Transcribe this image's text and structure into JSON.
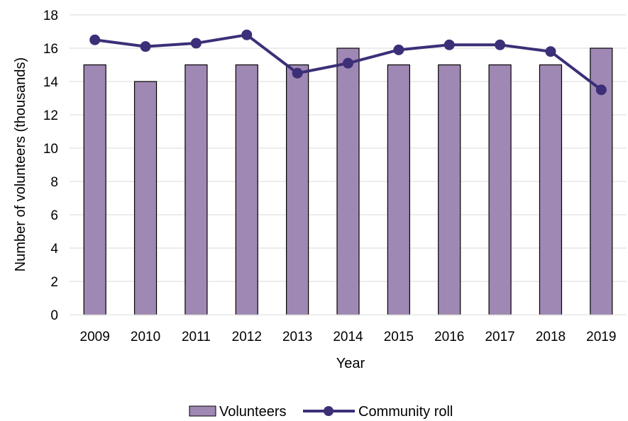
{
  "chart_data": {
    "type": "bar",
    "categories": [
      "2009",
      "2010",
      "2011",
      "2012",
      "2013",
      "2014",
      "2015",
      "2016",
      "2017",
      "2018",
      "2019"
    ],
    "series": [
      {
        "name": "Volunteers",
        "type": "bar",
        "color": "#a088b4",
        "values": [
          15,
          14,
          15,
          15,
          15,
          16,
          15,
          15,
          15,
          15,
          16
        ]
      },
      {
        "name": "Community roll",
        "type": "line",
        "color": "#3c2f78",
        "values": [
          16.5,
          16.1,
          16.3,
          16.8,
          14.5,
          15.1,
          15.9,
          16.2,
          16.2,
          15.8,
          13.5
        ]
      }
    ],
    "xlabel": "Year",
    "ylabel": "Number of volunteers (thousands)",
    "ylim": [
      0,
      18
    ],
    "yticks": [
      "0",
      "2",
      "4",
      "6",
      "8",
      "10",
      "12",
      "14",
      "16",
      "18"
    ],
    "grid": true,
    "legend_position": "bottom"
  }
}
